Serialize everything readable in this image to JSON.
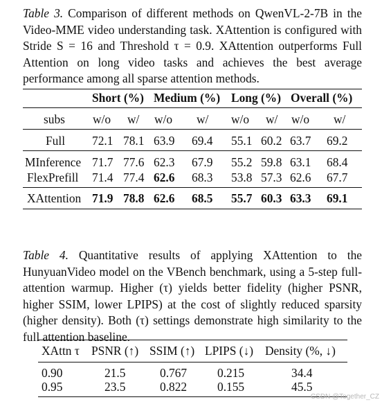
{
  "table3": {
    "caption_label": "Table 3.",
    "caption_text": " Comparison of different methods on QwenVL-2-7B in the Video-MME video understanding task. XAttention is configured with Stride S = 16 and Threshold τ = 0.9. XAttention outperforms Full Attention on long video tasks and achieves the best average performance among all sparse attention methods.",
    "groups": [
      "Short (%)",
      "Medium (%)",
      "Long (%)",
      "Overall (%)"
    ],
    "subs_label": "subs",
    "subs": [
      "w/o",
      "w/",
      "w/o",
      "w/",
      "w/o",
      "w/",
      "w/o",
      "w/"
    ],
    "rows": [
      {
        "method": "Full",
        "values": [
          "72.1",
          "78.1",
          "63.9",
          "69.4",
          "55.1",
          "60.2",
          "63.7",
          "69.2"
        ],
        "bold": [
          false,
          false,
          false,
          false,
          false,
          false,
          false,
          false
        ]
      },
      {
        "method": "MInference",
        "values": [
          "71.7",
          "77.6",
          "62.3",
          "67.9",
          "55.2",
          "59.8",
          "63.1",
          "68.4"
        ],
        "bold": [
          false,
          false,
          false,
          false,
          false,
          false,
          false,
          false
        ]
      },
      {
        "method": "FlexPrefill",
        "values": [
          "71.4",
          "77.4",
          "62.6",
          "68.3",
          "53.8",
          "57.3",
          "62.6",
          "67.7"
        ],
        "bold": [
          false,
          false,
          true,
          false,
          false,
          false,
          false,
          false
        ]
      },
      {
        "method": "XAttention",
        "values": [
          "71.9",
          "78.8",
          "62.6",
          "68.5",
          "55.7",
          "60.3",
          "63.3",
          "69.1"
        ],
        "bold": [
          true,
          true,
          true,
          true,
          true,
          true,
          true,
          true
        ]
      }
    ]
  },
  "table4": {
    "caption_label": "Table 4.",
    "caption_text": " Quantitative results of applying XAttention to the HunyuanVideo model on the VBench benchmark, using a 5-step full-attention warmup. Higher (τ) yields better fidelity (higher PSNR, higher SSIM, lower LPIPS) at the cost of slightly reduced sparsity (higher density). Both (τ) settings demonstrate high similarity to the full attention baseline.",
    "headers": [
      "XAttn τ",
      "PSNR (↑)",
      "SSIM (↑)",
      "LPIPS (↓)",
      "Density (%, ↓)"
    ],
    "rows": [
      [
        "0.90",
        "21.5",
        "0.767",
        "0.215",
        "34.4"
      ],
      [
        "0.95",
        "23.5",
        "0.822",
        "0.155",
        "45.5"
      ]
    ]
  },
  "watermark": "CSDN @Together_CZ"
}
